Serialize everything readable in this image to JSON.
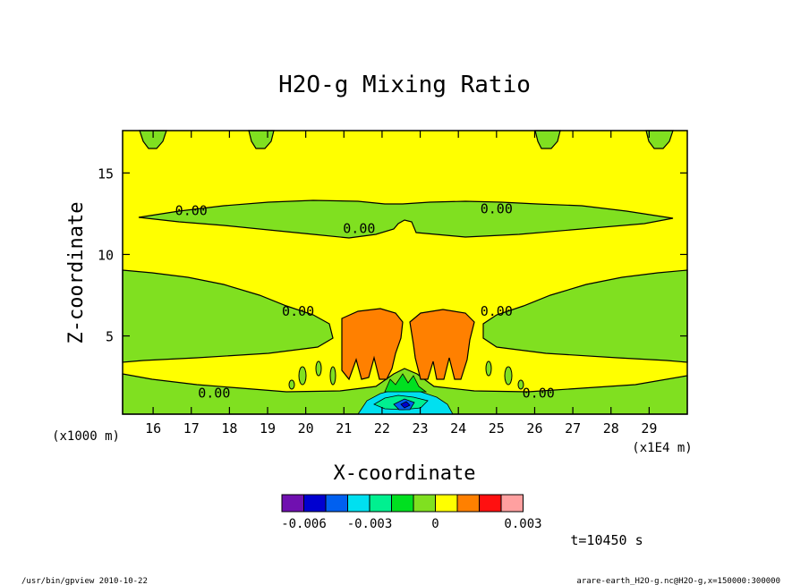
{
  "chart_data": {
    "type": "contour",
    "title": "H2O-g Mixing Ratio",
    "xlabel": "X-coordinate",
    "ylabel": "Z-coordinate",
    "x_unit_left": "(x1000 m)",
    "x_unit_right": "(x1E4 m)",
    "xlim": [
      15.2,
      30.0
    ],
    "ylim": [
      0.2,
      17.6
    ],
    "x_ticks": [
      16,
      17,
      18,
      19,
      20,
      21,
      22,
      23,
      24,
      25,
      26,
      27,
      28,
      29
    ],
    "y_ticks": [
      5,
      10,
      15
    ],
    "contour_labels": [
      {
        "text": "0.00",
        "x": 17.0,
        "y": 12.7
      },
      {
        "text": "0.00",
        "x": 21.4,
        "y": 11.6
      },
      {
        "text": "0.00",
        "x": 25.0,
        "y": 12.8
      },
      {
        "text": "0.00",
        "x": 19.8,
        "y": 6.5
      },
      {
        "text": "0.00",
        "x": 25.0,
        "y": 6.5
      },
      {
        "text": "0.00",
        "x": 17.6,
        "y": 1.5
      },
      {
        "text": "0.00",
        "x": 26.1,
        "y": 1.5
      }
    ],
    "colorbar": {
      "colors": [
        "#7010b0",
        "#0000d0",
        "#0060f0",
        "#00e0f0",
        "#00f090",
        "#00e020",
        "#80e020",
        "#ffff00",
        "#ff8000",
        "#ff1010",
        "#ffa0a0"
      ],
      "tick_labels": [
        "-0.006",
        "-0.003",
        "0",
        "0.003"
      ]
    },
    "time_label": "t=10450 s",
    "footer_left": "/usr/bin/gpview  2010-10-22",
    "footer_right": "arare-earth_H2O-g.nc@H2O-g,x=150000:300000"
  }
}
